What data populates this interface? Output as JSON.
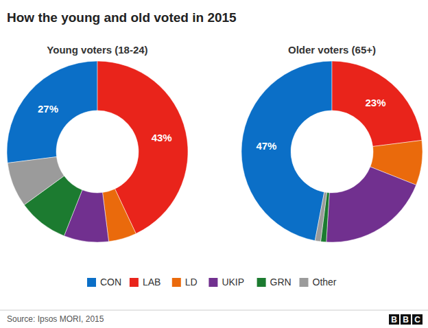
{
  "title": "How the young and old voted in 2015",
  "source": "Source: Ipsos MORI, 2015",
  "logo": "BBC",
  "chart_data": [
    {
      "type": "pie",
      "title": "Young voters (18-24)",
      "categories": [
        "CON",
        "LAB",
        "LD",
        "UKIP",
        "GRN",
        "Other"
      ],
      "values": [
        27,
        43,
        5,
        8,
        9,
        8
      ],
      "value_labels": [
        "27%",
        "43%",
        null,
        null,
        null,
        null
      ],
      "colors": [
        "#0b6fc7",
        "#e9241b",
        "#ea6a0c",
        "#71308f",
        "#1c7b30",
        "#9b9b9b"
      ],
      "data_labels": true,
      "legend": "bottom"
    },
    {
      "type": "pie",
      "title": "Older voters (65+)",
      "categories": [
        "CON",
        "LAB",
        "LD",
        "UKIP",
        "GRN",
        "Other"
      ],
      "values": [
        47,
        23,
        8,
        20,
        1,
        1
      ],
      "value_labels": [
        "47%",
        "23%",
        null,
        null,
        null,
        null
      ],
      "colors": [
        "#0b6fc7",
        "#e9241b",
        "#ea6a0c",
        "#71308f",
        "#1c7b30",
        "#9b9b9b"
      ],
      "data_labels": true,
      "legend": "bottom"
    }
  ]
}
